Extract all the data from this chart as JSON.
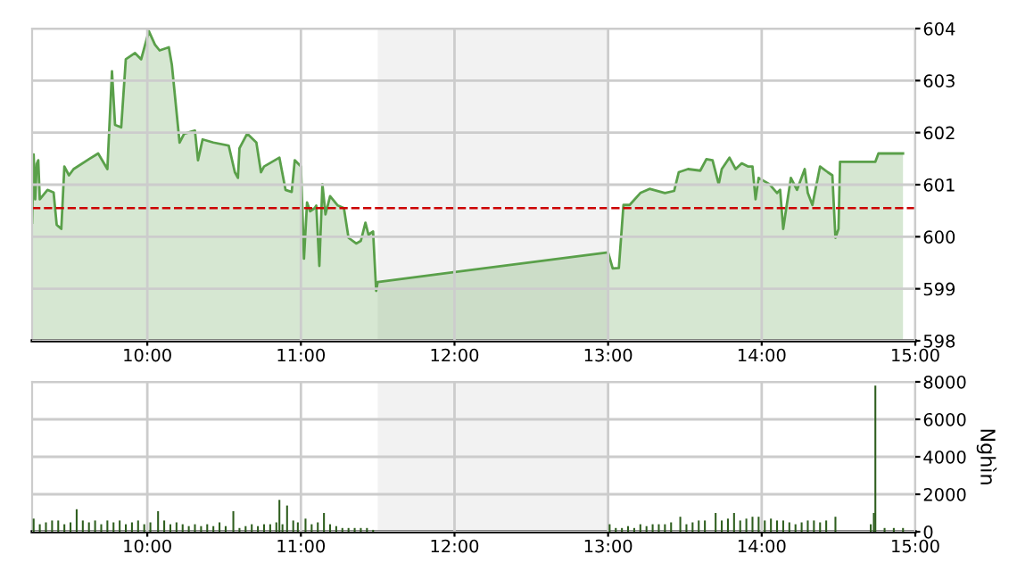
{
  "chart_data": [
    {
      "type": "area",
      "xlim": [
        9.25,
        15
      ],
      "ylim": [
        598,
        604
      ],
      "yticks": [
        598,
        599,
        600,
        601,
        602,
        603,
        604
      ],
      "xticks": [
        {
          "value": 10,
          "label": "10:00"
        },
        {
          "value": 11,
          "label": "11:00"
        },
        {
          "value": 12,
          "label": "12:00"
        },
        {
          "value": 13,
          "label": "13:00"
        },
        {
          "value": 14,
          "label": "14:00"
        },
        {
          "value": 15,
          "label": "15:00"
        }
      ],
      "grid": true,
      "legend": false,
      "ref_lines": [
        {
          "axis": "y",
          "value": 600.55,
          "color": "#cc0000",
          "line_style": "dashed"
        }
      ],
      "bands": [
        {
          "axis": "x",
          "from": 11.5,
          "to": 13,
          "color": "#f2f2f2"
        }
      ],
      "series": [
        {
          "color": "#5aa04a",
          "x": [
            9.25,
            9.26,
            9.27,
            9.28,
            9.29,
            9.3,
            9.35,
            9.39,
            9.41,
            9.44,
            9.46,
            9.49,
            9.52,
            9.62,
            9.68,
            9.74,
            9.77,
            9.79,
            9.83,
            9.86,
            9.92,
            9.96,
            10.01,
            10.05,
            10.08,
            10.14,
            10.16,
            10.21,
            10.24,
            10.31,
            10.33,
            10.36,
            10.43,
            10.53,
            10.57,
            10.59,
            10.6,
            10.65,
            10.71,
            10.74,
            10.76,
            10.86,
            10.9,
            10.94,
            10.96,
            11.0,
            11.02,
            11.04,
            11.06,
            11.09,
            11.1,
            11.12,
            11.14,
            11.16,
            11.19,
            11.24,
            11.28,
            11.31,
            11.36,
            11.39,
            11.42,
            11.44,
            11.47,
            11.49,
            11.5,
            13.0,
            13.03,
            13.07,
            13.1,
            13.14,
            13.21,
            13.27,
            13.37,
            13.43,
            13.46,
            13.52,
            13.6,
            13.64,
            13.68,
            13.72,
            13.74,
            13.79,
            13.83,
            13.87,
            13.91,
            13.94,
            13.96,
            13.98,
            14.05,
            14.1,
            14.12,
            14.14,
            14.16,
            14.19,
            14.23,
            14.28,
            14.3,
            14.33,
            14.38,
            14.43,
            14.46,
            14.48,
            14.5,
            14.51,
            14.74,
            14.76,
            14.92
          ],
          "values": [
            600.27,
            601.58,
            600.72,
            601.4,
            601.47,
            600.72,
            600.9,
            600.85,
            600.23,
            600.15,
            601.35,
            601.18,
            601.3,
            601.49,
            601.6,
            601.3,
            603.18,
            602.15,
            602.1,
            603.41,
            603.53,
            603.41,
            603.95,
            603.69,
            603.58,
            603.64,
            603.3,
            601.81,
            601.98,
            602.04,
            601.47,
            601.87,
            601.81,
            601.75,
            601.24,
            601.13,
            601.7,
            601.98,
            601.81,
            601.24,
            601.35,
            601.52,
            600.9,
            600.86,
            601.47,
            601.35,
            599.58,
            600.66,
            600.49,
            600.55,
            600.6,
            599.44,
            601.01,
            600.43,
            600.78,
            600.6,
            600.55,
            599.98,
            599.87,
            599.92,
            600.27,
            600.04,
            600.1,
            598.96,
            599.13,
            599.7,
            599.39,
            599.4,
            600.61,
            600.61,
            600.84,
            600.92,
            600.84,
            600.88,
            601.24,
            601.3,
            601.27,
            601.49,
            601.47,
            601.01,
            601.3,
            601.52,
            601.3,
            601.41,
            601.35,
            601.35,
            600.72,
            601.13,
            601.01,
            600.84,
            600.9,
            600.15,
            600.55,
            601.13,
            600.9,
            601.3,
            600.84,
            600.61,
            601.35,
            601.24,
            601.18,
            599.98,
            600.15,
            601.44,
            601.44,
            601.6,
            601.6
          ]
        }
      ]
    },
    {
      "type": "bar",
      "xlim": [
        9.25,
        15
      ],
      "ylim": [
        0,
        8000
      ],
      "yticks": [
        0,
        2000,
        4000,
        6000,
        8000
      ],
      "ylabel": "Nghìn",
      "xticks": [
        {
          "value": 10,
          "label": "10:00"
        },
        {
          "value": 11,
          "label": "11:00"
        },
        {
          "value": 12,
          "label": "12:00"
        },
        {
          "value": 13,
          "label": "13:00"
        },
        {
          "value": 14,
          "label": "14:00"
        },
        {
          "value": 15,
          "label": "15:00"
        }
      ],
      "grid": true,
      "legend": false,
      "bands": [
        {
          "axis": "x",
          "from": 11.5,
          "to": 13,
          "color": "#f2f2f2"
        }
      ],
      "series": [
        {
          "color": "#2e5e1e",
          "x": [
            9.26,
            9.3,
            9.34,
            9.38,
            9.42,
            9.46,
            9.5,
            9.54,
            9.58,
            9.62,
            9.66,
            9.7,
            9.74,
            9.78,
            9.82,
            9.86,
            9.9,
            9.94,
            9.98,
            10.02,
            10.07,
            10.11,
            10.15,
            10.19,
            10.23,
            10.27,
            10.31,
            10.35,
            10.39,
            10.43,
            10.47,
            10.51,
            10.56,
            10.6,
            10.64,
            10.68,
            10.72,
            10.76,
            10.8,
            10.84,
            10.86,
            10.88,
            10.91,
            10.95,
            10.98,
            11.03,
            11.07,
            11.11,
            11.15,
            11.19,
            11.23,
            11.27,
            11.31,
            11.35,
            11.39,
            11.43,
            11.47,
            13.01,
            13.05,
            13.09,
            13.13,
            13.17,
            13.21,
            13.25,
            13.29,
            13.33,
            13.37,
            13.41,
            13.47,
            13.51,
            13.55,
            13.59,
            13.63,
            13.7,
            13.74,
            13.78,
            13.82,
            13.86,
            13.9,
            13.94,
            13.98,
            14.02,
            14.06,
            14.1,
            14.14,
            14.18,
            14.22,
            14.26,
            14.3,
            14.34,
            14.38,
            14.42,
            14.48,
            14.71,
            14.73,
            14.74,
            14.8,
            14.86,
            14.92
          ],
          "values": [
            700,
            400,
            500,
            600,
            600,
            400,
            500,
            1200,
            600,
            500,
            600,
            400,
            600,
            500,
            600,
            400,
            500,
            600,
            400,
            500,
            1100,
            600,
            400,
            500,
            400,
            300,
            400,
            300,
            400,
            300,
            500,
            300,
            1100,
            200,
            300,
            400,
            300,
            400,
            400,
            500,
            1700,
            400,
            1400,
            600,
            500,
            700,
            400,
            500,
            1000,
            400,
            300,
            200,
            200,
            200,
            200,
            200,
            100,
            400,
            200,
            200,
            300,
            200,
            400,
            300,
            400,
            400,
            400,
            500,
            800,
            400,
            500,
            600,
            600,
            1000,
            600,
            700,
            1000,
            600,
            700,
            800,
            800,
            600,
            700,
            600,
            600,
            500,
            400,
            500,
            600,
            600,
            500,
            600,
            800,
            400,
            1000,
            7800,
            200,
            200,
            200
          ]
        }
      ]
    }
  ]
}
